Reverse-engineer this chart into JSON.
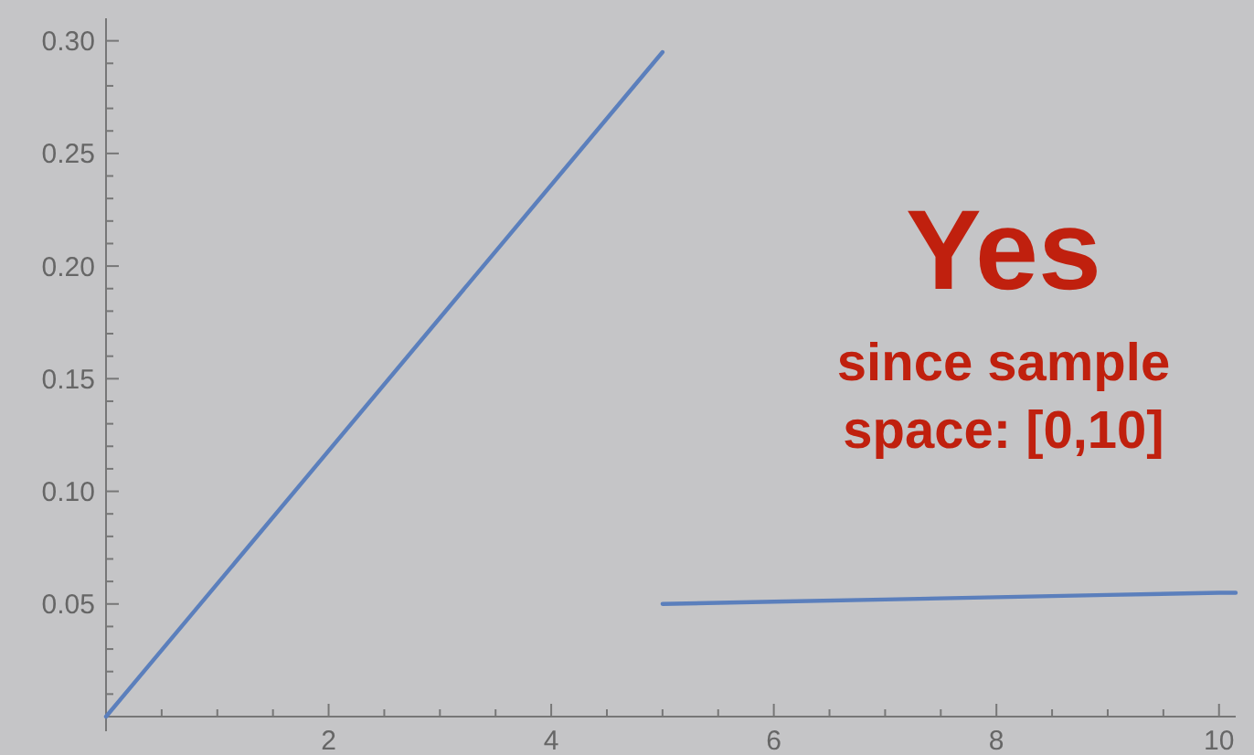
{
  "chart_data": {
    "type": "line",
    "xlim": [
      0,
      10.15
    ],
    "ylim": [
      0,
      0.31
    ],
    "xticks": [
      {
        "value": 0.5,
        "label": null
      },
      {
        "value": 1,
        "label": null
      },
      {
        "value": 1.5,
        "label": null
      },
      2,
      {
        "value": 2.5,
        "label": null
      },
      {
        "value": 3,
        "label": null
      },
      {
        "value": 3.5,
        "label": null
      },
      4,
      {
        "value": 4.5,
        "label": null
      },
      {
        "value": 5,
        "label": null
      },
      {
        "value": 5.5,
        "label": null
      },
      6,
      {
        "value": 6.5,
        "label": null
      },
      {
        "value": 7,
        "label": null
      },
      {
        "value": 7.5,
        "label": null
      },
      8,
      {
        "value": 8.5,
        "label": null
      },
      {
        "value": 9,
        "label": null
      },
      {
        "value": 9.5,
        "label": null
      },
      10
    ],
    "yticks": [
      {
        "value": 0.01,
        "label": null
      },
      {
        "value": 0.02,
        "label": null
      },
      {
        "value": 0.03,
        "label": null
      },
      {
        "value": 0.04,
        "label": null
      },
      {
        "value": 0.05,
        "label": "0.05"
      },
      {
        "value": 0.06,
        "label": null
      },
      {
        "value": 0.07,
        "label": null
      },
      {
        "value": 0.08,
        "label": null
      },
      {
        "value": 0.09,
        "label": null
      },
      {
        "value": 0.1,
        "label": "0.10"
      },
      {
        "value": 0.11,
        "label": null
      },
      {
        "value": 0.12,
        "label": null
      },
      {
        "value": 0.13,
        "label": null
      },
      {
        "value": 0.14,
        "label": null
      },
      {
        "value": 0.15,
        "label": "0.15"
      },
      {
        "value": 0.16,
        "label": null
      },
      {
        "value": 0.17,
        "label": null
      },
      {
        "value": 0.18,
        "label": null
      },
      {
        "value": 0.19,
        "label": null
      },
      {
        "value": 0.2,
        "label": "0.20"
      },
      {
        "value": 0.21,
        "label": null
      },
      {
        "value": 0.22,
        "label": null
      },
      {
        "value": 0.23,
        "label": null
      },
      {
        "value": 0.24,
        "label": null
      },
      {
        "value": 0.25,
        "label": "0.25"
      },
      {
        "value": 0.26,
        "label": null
      },
      {
        "value": 0.27,
        "label": null
      },
      {
        "value": 0.28,
        "label": null
      },
      {
        "value": 0.29,
        "label": null
      },
      {
        "value": 0.3,
        "label": "0.30"
      }
    ],
    "series": [
      {
        "color": "#5b7fbc",
        "x": [
          0,
          5
        ],
        "values": [
          0,
          0.295
        ]
      },
      {
        "color": "#5b7fbc",
        "x": [
          5,
          6,
          7,
          8,
          9,
          10,
          10.15
        ],
        "values": [
          0.05,
          0.051,
          0.052,
          0.053,
          0.054,
          0.055,
          0.055
        ]
      }
    ],
    "annotations": [
      "Yes",
      "since sample space: [0,10]"
    ]
  }
}
